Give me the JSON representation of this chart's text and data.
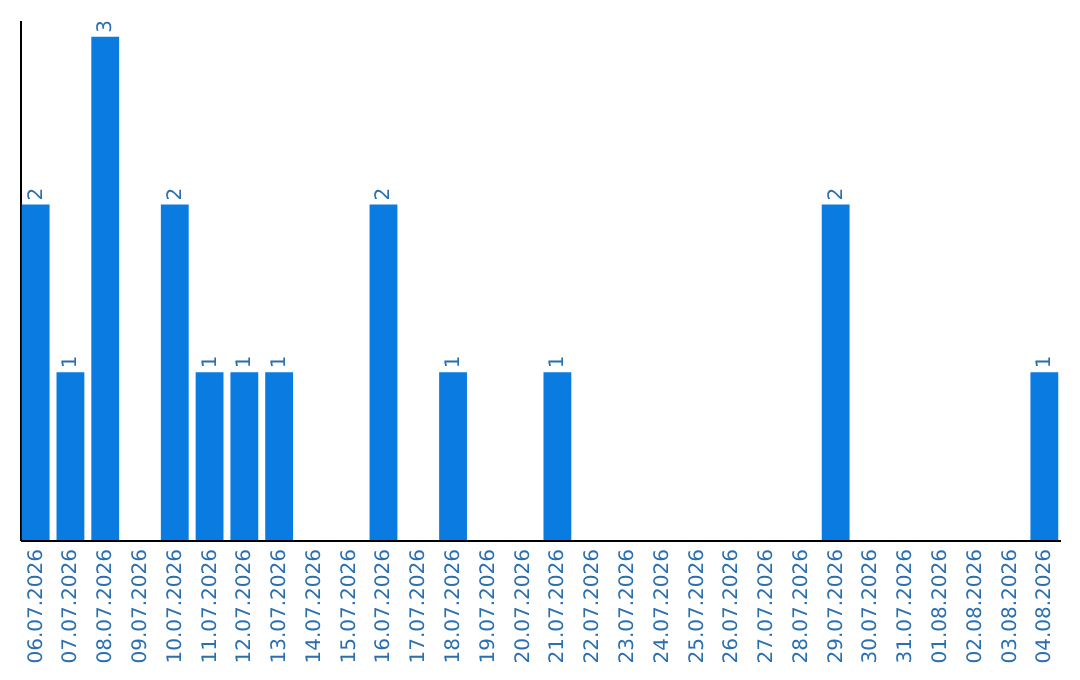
{
  "chart_data": {
    "type": "bar",
    "categories": [
      "06.07.2026",
      "07.07.2026",
      "08.07.2026",
      "09.07.2026",
      "10.07.2026",
      "11.07.2026",
      "12.07.2026",
      "13.07.2026",
      "14.07.2026",
      "15.07.2026",
      "16.07.2026",
      "17.07.2026",
      "18.07.2026",
      "19.07.2026",
      "20.07.2026",
      "21.07.2026",
      "22.07.2026",
      "23.07.2026",
      "24.07.2026",
      "25.07.2026",
      "26.07.2026",
      "27.07.2026",
      "28.07.2026",
      "29.07.2026",
      "30.07.2026",
      "31.07.2026",
      "01.08.2026",
      "02.08.2026",
      "03.08.2026",
      "04.08.2026"
    ],
    "values": [
      2,
      1,
      3,
      0,
      2,
      1,
      1,
      1,
      0,
      0,
      2,
      0,
      1,
      0,
      0,
      1,
      0,
      0,
      0,
      0,
      0,
      0,
      0,
      2,
      0,
      0,
      0,
      0,
      0,
      1
    ],
    "value_labels": [
      "2",
      "1",
      "3",
      null,
      "2",
      "1",
      "1",
      "1",
      null,
      null,
      "2",
      null,
      "1",
      null,
      null,
      "1",
      null,
      null,
      null,
      null,
      null,
      null,
      null,
      "2",
      null,
      null,
      null,
      null,
      null,
      "1"
    ],
    "color": "#0a7be0",
    "ylim": [
      0,
      3.1
    ],
    "grid": false
  }
}
